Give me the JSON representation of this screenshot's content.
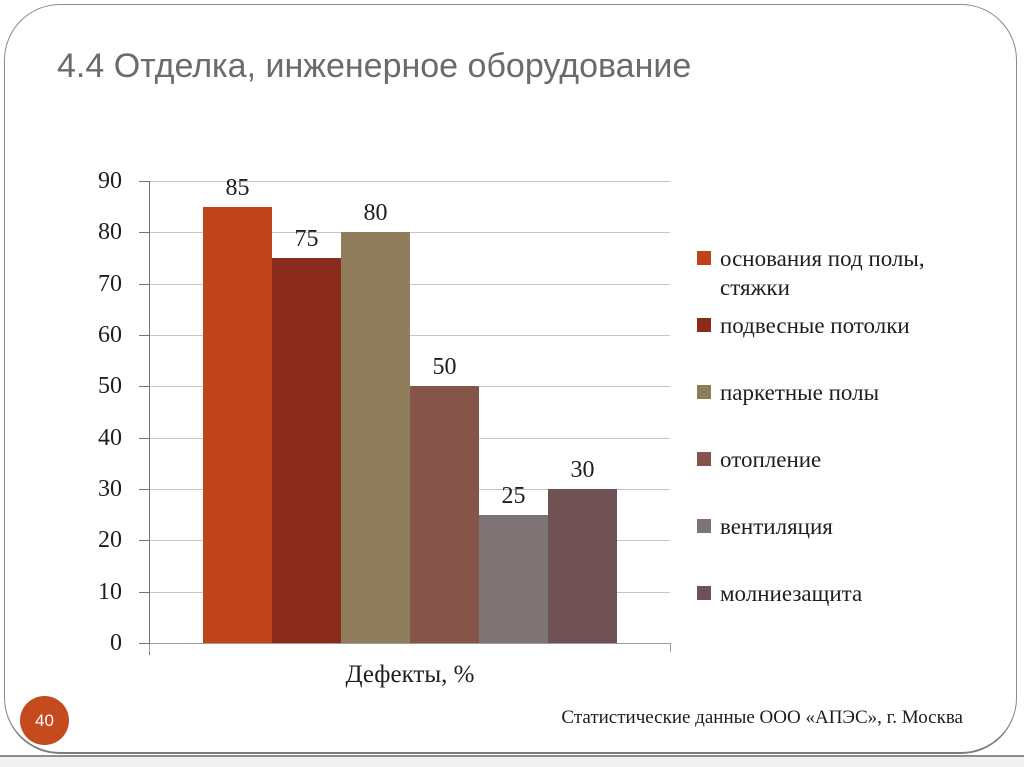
{
  "slide": {
    "title": "4.4 Отделка, инженерное оборудование",
    "page_number": "40",
    "footer_note": "Статистические данные ООО «АПЭС», г. Москва"
  },
  "colors": {
    "title_gray": "#6B6B6B",
    "badge_orange": "#C54A1E",
    "gridline": "#C6C6C6",
    "axis": "#737373"
  },
  "chart_data": {
    "type": "bar",
    "title": "",
    "xlabel": "Дефекты, %",
    "ylabel": "",
    "ylim": [
      0,
      90
    ],
    "yticks": [
      0,
      10,
      20,
      30,
      40,
      50,
      60,
      70,
      80,
      90
    ],
    "grid": true,
    "legend_position": "right",
    "categories": [
      "Дефекты, %"
    ],
    "series": [
      {
        "name": "основания под полы, стяжки",
        "values": [
          85
        ],
        "color": "#C0441A"
      },
      {
        "name": "подвесные потолки",
        "values": [
          75
        ],
        "color": "#8B2B1E"
      },
      {
        "name": "паркетные полы",
        "values": [
          80
        ],
        "color": "#8F7D5B"
      },
      {
        "name": "отопление",
        "values": [
          50
        ],
        "color": "#855549"
      },
      {
        "name": "вентиляция",
        "values": [
          25
        ],
        "color": "#7F7475"
      },
      {
        "name": "молниезащита",
        "values": [
          30
        ],
        "color": "#705154"
      }
    ]
  }
}
